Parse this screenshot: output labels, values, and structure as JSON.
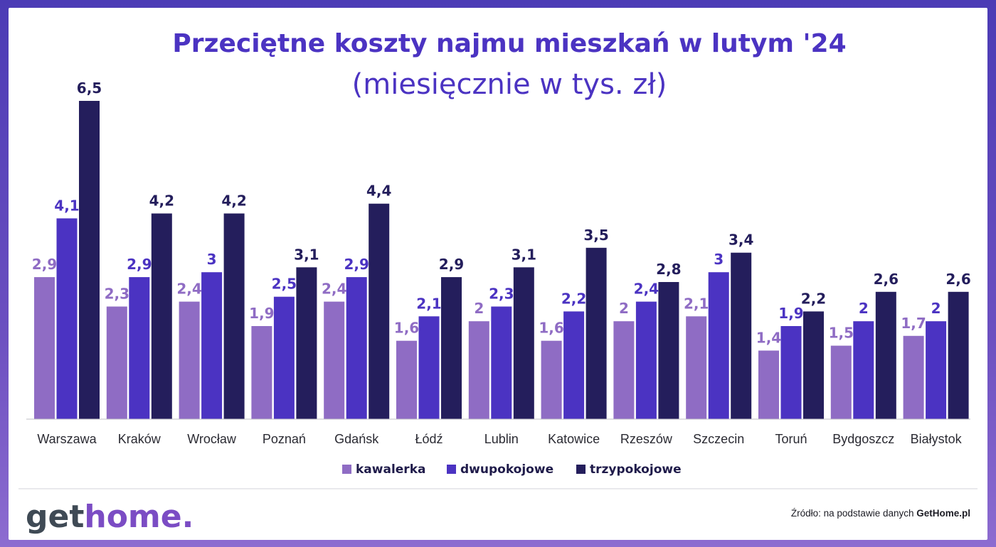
{
  "colors": {
    "kawalerka": "#8f6cc4",
    "dwupokojowe": "#4b33c2",
    "trzypokojowe": "#241e5c",
    "title": "#4b33c2",
    "logo_get": "#3f4a55",
    "logo_home": "#7b4cc4"
  },
  "chart_data": {
    "type": "bar",
    "title": "Przeciętne koszty najmu mieszkań w lutym '24",
    "subtitle": "(miesięcznie w tys. zł)",
    "categories": [
      "Warszawa",
      "Kraków",
      "Wrocław",
      "Poznań",
      "Gdańsk",
      "Łódź",
      "Lublin",
      "Katowice",
      "Rzeszów",
      "Szczecin",
      "Toruń",
      "Bydgoszcz",
      "Białystok"
    ],
    "series": [
      {
        "name": "kawalerka",
        "values": [
          2.9,
          2.3,
          2.4,
          1.9,
          2.4,
          1.6,
          2,
          1.6,
          2,
          2.1,
          1.4,
          1.5,
          1.7
        ],
        "labels": [
          "2,9",
          "2,3",
          "2,4",
          "1,9",
          "2,4",
          "1,6",
          "2",
          "1,6",
          "2",
          "2,1",
          "1,4",
          "1,5",
          "1,7"
        ]
      },
      {
        "name": "dwupokojowe",
        "values": [
          4.1,
          2.9,
          3,
          2.5,
          2.9,
          2.1,
          2.3,
          2.2,
          2.4,
          3,
          1.9,
          2,
          2
        ],
        "labels": [
          "4,1",
          "2,9",
          "3",
          "2,5",
          "2,9",
          "2,1",
          "2,3",
          "2,2",
          "2,4",
          "3",
          "1,9",
          "2",
          "2"
        ]
      },
      {
        "name": "trzypokojowe",
        "values": [
          6.5,
          4.2,
          4.2,
          3.1,
          4.4,
          2.9,
          3.1,
          3.5,
          2.8,
          3.4,
          2.2,
          2.6,
          2.6
        ],
        "labels": [
          "6,5",
          "4,2",
          "4,2",
          "3,1",
          "4,4",
          "2,9",
          "3,1",
          "3,5",
          "2,8",
          "3,4",
          "2,2",
          "2,6",
          "2,6"
        ]
      }
    ],
    "ylim": [
      0,
      6.5
    ],
    "grid": false,
    "legend_position": "bottom"
  },
  "footer": {
    "logo_get": "get",
    "logo_home": "home.",
    "source_prefix": "Źródło: na podstawie danych ",
    "source_name": "GetHome.pl"
  }
}
